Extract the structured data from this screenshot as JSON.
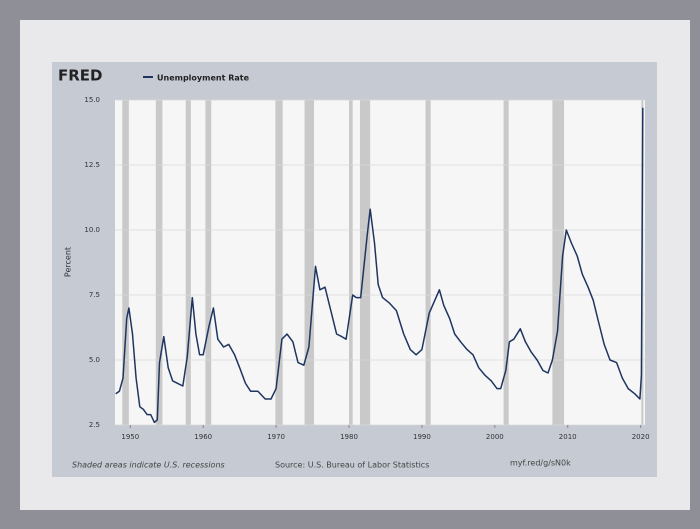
{
  "chart_data": {
    "type": "line",
    "brand": "FRED",
    "ylabel": "Percent",
    "note": "Shaded areas indicate U.S. recessions",
    "source": "Source: U.S. Bureau of Labor Statistics",
    "link": "myf.red/g/sN0k",
    "x": [
      1948.0,
      1948.5,
      1949.0,
      1949.5,
      1949.8,
      1950.3,
      1950.8,
      1951.3,
      1951.8,
      1952.3,
      1952.8,
      1953.3,
      1953.7,
      1954.0,
      1954.6,
      1955.2,
      1955.8,
      1956.5,
      1957.2,
      1957.8,
      1958.5,
      1959.0,
      1959.5,
      1960.0,
      1960.8,
      1961.4,
      1962.0,
      1962.8,
      1963.5,
      1964.3,
      1965.0,
      1965.8,
      1966.5,
      1967.5,
      1968.5,
      1969.3,
      1970.0,
      1970.8,
      1971.5,
      1972.3,
      1973.0,
      1973.8,
      1974.5,
      1975.4,
      1976.0,
      1976.7,
      1977.5,
      1978.3,
      1979.0,
      1979.6,
      1980.5,
      1981.0,
      1981.6,
      1982.5,
      1982.9,
      1983.5,
      1984.0,
      1984.6,
      1985.5,
      1986.5,
      1987.5,
      1988.4,
      1989.2,
      1990.0,
      1991.0,
      1992.4,
      1993.0,
      1993.8,
      1994.5,
      1995.3,
      1996.2,
      1997.0,
      1997.8,
      1998.7,
      1999.5,
      2000.3,
      2000.8,
      2001.5,
      2002.0,
      2002.6,
      2003.5,
      2004.2,
      2005.0,
      2005.8,
      2006.6,
      2007.3,
      2007.9,
      2008.6,
      2009.3,
      2009.8,
      2010.5,
      2011.3,
      2012.0,
      2012.8,
      2013.5,
      2014.2,
      2015.0,
      2015.8,
      2016.7,
      2017.5,
      2018.3,
      2019.2,
      2019.9,
      2020.1,
      2020.3
    ],
    "series": [
      {
        "name": "Unemployment Rate",
        "color": "#1f3560",
        "values": [
          3.7,
          3.8,
          4.3,
          6.6,
          7.0,
          6.0,
          4.3,
          3.2,
          3.1,
          2.9,
          2.9,
          2.6,
          2.7,
          4.9,
          5.9,
          4.7,
          4.2,
          4.1,
          4.0,
          5.1,
          7.4,
          6.0,
          5.2,
          5.2,
          6.3,
          7.0,
          5.8,
          5.5,
          5.6,
          5.2,
          4.7,
          4.1,
          3.8,
          3.8,
          3.5,
          3.5,
          3.9,
          5.8,
          6.0,
          5.7,
          4.9,
          4.8,
          5.5,
          8.6,
          7.7,
          7.8,
          6.9,
          6.0,
          5.9,
          5.8,
          7.5,
          7.4,
          7.4,
          9.8,
          10.8,
          9.5,
          7.9,
          7.4,
          7.2,
          6.9,
          6.0,
          5.4,
          5.2,
          5.4,
          6.8,
          7.7,
          7.1,
          6.6,
          6.0,
          5.7,
          5.4,
          5.2,
          4.7,
          4.4,
          4.2,
          3.9,
          3.9,
          4.6,
          5.7,
          5.8,
          6.2,
          5.7,
          5.3,
          5.0,
          4.6,
          4.5,
          5.0,
          6.1,
          9.0,
          10.0,
          9.5,
          9.0,
          8.3,
          7.8,
          7.3,
          6.5,
          5.6,
          5.0,
          4.9,
          4.3,
          3.9,
          3.7,
          3.5,
          4.4,
          14.7
        ]
      }
    ],
    "recessions": [
      [
        1948.9,
        1949.8
      ],
      [
        1953.5,
        1954.4
      ],
      [
        1957.6,
        1958.3
      ],
      [
        1960.3,
        1961.1
      ],
      [
        1969.9,
        1970.9
      ],
      [
        1973.9,
        1975.2
      ],
      [
        1980.0,
        1980.5
      ],
      [
        1981.5,
        1982.9
      ],
      [
        1990.5,
        1991.2
      ],
      [
        2001.2,
        2001.9
      ],
      [
        2007.9,
        2009.5
      ],
      [
        2020.1,
        2020.3
      ]
    ],
    "recession_color": "#c9c9c9",
    "xlim": [
      1947.9,
      2020.6
    ],
    "xticks": [
      1950,
      1960,
      1970,
      1980,
      1990,
      2000,
      2010,
      2020
    ],
    "ylim": [
      2.5,
      15
    ],
    "yticks": [
      2.5,
      {
        "value": 5,
        "label": "5.0"
      },
      7.5,
      {
        "value": 10,
        "label": "10.0"
      },
      12.5,
      {
        "value": 15,
        "label": "15.0"
      }
    ],
    "grid": true
  }
}
